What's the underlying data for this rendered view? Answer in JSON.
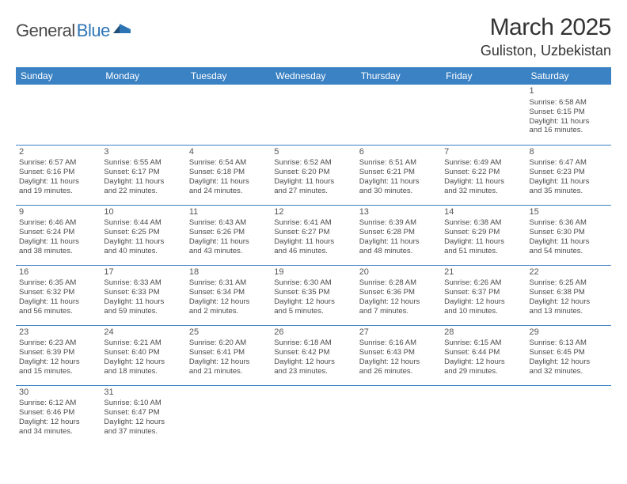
{
  "logo": {
    "text1": "General",
    "text2": "Blue"
  },
  "title": "March 2025",
  "location": "Guliston, Uzbekistan",
  "colors": {
    "header_bg": "#3b82c4",
    "header_text": "#ffffff",
    "border": "#3b82c4",
    "text": "#4a4a4a",
    "logo_grey": "#4a4a4a",
    "logo_blue": "#2e75b6"
  },
  "weekdays": [
    "Sunday",
    "Monday",
    "Tuesday",
    "Wednesday",
    "Thursday",
    "Friday",
    "Saturday"
  ],
  "weeks": [
    [
      null,
      null,
      null,
      null,
      null,
      null,
      {
        "n": "1",
        "sr": "Sunrise: 6:58 AM",
        "ss": "Sunset: 6:15 PM",
        "d1": "Daylight: 11 hours",
        "d2": "and 16 minutes."
      }
    ],
    [
      {
        "n": "2",
        "sr": "Sunrise: 6:57 AM",
        "ss": "Sunset: 6:16 PM",
        "d1": "Daylight: 11 hours",
        "d2": "and 19 minutes."
      },
      {
        "n": "3",
        "sr": "Sunrise: 6:55 AM",
        "ss": "Sunset: 6:17 PM",
        "d1": "Daylight: 11 hours",
        "d2": "and 22 minutes."
      },
      {
        "n": "4",
        "sr": "Sunrise: 6:54 AM",
        "ss": "Sunset: 6:18 PM",
        "d1": "Daylight: 11 hours",
        "d2": "and 24 minutes."
      },
      {
        "n": "5",
        "sr": "Sunrise: 6:52 AM",
        "ss": "Sunset: 6:20 PM",
        "d1": "Daylight: 11 hours",
        "d2": "and 27 minutes."
      },
      {
        "n": "6",
        "sr": "Sunrise: 6:51 AM",
        "ss": "Sunset: 6:21 PM",
        "d1": "Daylight: 11 hours",
        "d2": "and 30 minutes."
      },
      {
        "n": "7",
        "sr": "Sunrise: 6:49 AM",
        "ss": "Sunset: 6:22 PM",
        "d1": "Daylight: 11 hours",
        "d2": "and 32 minutes."
      },
      {
        "n": "8",
        "sr": "Sunrise: 6:47 AM",
        "ss": "Sunset: 6:23 PM",
        "d1": "Daylight: 11 hours",
        "d2": "and 35 minutes."
      }
    ],
    [
      {
        "n": "9",
        "sr": "Sunrise: 6:46 AM",
        "ss": "Sunset: 6:24 PM",
        "d1": "Daylight: 11 hours",
        "d2": "and 38 minutes."
      },
      {
        "n": "10",
        "sr": "Sunrise: 6:44 AM",
        "ss": "Sunset: 6:25 PM",
        "d1": "Daylight: 11 hours",
        "d2": "and 40 minutes."
      },
      {
        "n": "11",
        "sr": "Sunrise: 6:43 AM",
        "ss": "Sunset: 6:26 PM",
        "d1": "Daylight: 11 hours",
        "d2": "and 43 minutes."
      },
      {
        "n": "12",
        "sr": "Sunrise: 6:41 AM",
        "ss": "Sunset: 6:27 PM",
        "d1": "Daylight: 11 hours",
        "d2": "and 46 minutes."
      },
      {
        "n": "13",
        "sr": "Sunrise: 6:39 AM",
        "ss": "Sunset: 6:28 PM",
        "d1": "Daylight: 11 hours",
        "d2": "and 48 minutes."
      },
      {
        "n": "14",
        "sr": "Sunrise: 6:38 AM",
        "ss": "Sunset: 6:29 PM",
        "d1": "Daylight: 11 hours",
        "d2": "and 51 minutes."
      },
      {
        "n": "15",
        "sr": "Sunrise: 6:36 AM",
        "ss": "Sunset: 6:30 PM",
        "d1": "Daylight: 11 hours",
        "d2": "and 54 minutes."
      }
    ],
    [
      {
        "n": "16",
        "sr": "Sunrise: 6:35 AM",
        "ss": "Sunset: 6:32 PM",
        "d1": "Daylight: 11 hours",
        "d2": "and 56 minutes."
      },
      {
        "n": "17",
        "sr": "Sunrise: 6:33 AM",
        "ss": "Sunset: 6:33 PM",
        "d1": "Daylight: 11 hours",
        "d2": "and 59 minutes."
      },
      {
        "n": "18",
        "sr": "Sunrise: 6:31 AM",
        "ss": "Sunset: 6:34 PM",
        "d1": "Daylight: 12 hours",
        "d2": "and 2 minutes."
      },
      {
        "n": "19",
        "sr": "Sunrise: 6:30 AM",
        "ss": "Sunset: 6:35 PM",
        "d1": "Daylight: 12 hours",
        "d2": "and 5 minutes."
      },
      {
        "n": "20",
        "sr": "Sunrise: 6:28 AM",
        "ss": "Sunset: 6:36 PM",
        "d1": "Daylight: 12 hours",
        "d2": "and 7 minutes."
      },
      {
        "n": "21",
        "sr": "Sunrise: 6:26 AM",
        "ss": "Sunset: 6:37 PM",
        "d1": "Daylight: 12 hours",
        "d2": "and 10 minutes."
      },
      {
        "n": "22",
        "sr": "Sunrise: 6:25 AM",
        "ss": "Sunset: 6:38 PM",
        "d1": "Daylight: 12 hours",
        "d2": "and 13 minutes."
      }
    ],
    [
      {
        "n": "23",
        "sr": "Sunrise: 6:23 AM",
        "ss": "Sunset: 6:39 PM",
        "d1": "Daylight: 12 hours",
        "d2": "and 15 minutes."
      },
      {
        "n": "24",
        "sr": "Sunrise: 6:21 AM",
        "ss": "Sunset: 6:40 PM",
        "d1": "Daylight: 12 hours",
        "d2": "and 18 minutes."
      },
      {
        "n": "25",
        "sr": "Sunrise: 6:20 AM",
        "ss": "Sunset: 6:41 PM",
        "d1": "Daylight: 12 hours",
        "d2": "and 21 minutes."
      },
      {
        "n": "26",
        "sr": "Sunrise: 6:18 AM",
        "ss": "Sunset: 6:42 PM",
        "d1": "Daylight: 12 hours",
        "d2": "and 23 minutes."
      },
      {
        "n": "27",
        "sr": "Sunrise: 6:16 AM",
        "ss": "Sunset: 6:43 PM",
        "d1": "Daylight: 12 hours",
        "d2": "and 26 minutes."
      },
      {
        "n": "28",
        "sr": "Sunrise: 6:15 AM",
        "ss": "Sunset: 6:44 PM",
        "d1": "Daylight: 12 hours",
        "d2": "and 29 minutes."
      },
      {
        "n": "29",
        "sr": "Sunrise: 6:13 AM",
        "ss": "Sunset: 6:45 PM",
        "d1": "Daylight: 12 hours",
        "d2": "and 32 minutes."
      }
    ],
    [
      {
        "n": "30",
        "sr": "Sunrise: 6:12 AM",
        "ss": "Sunset: 6:46 PM",
        "d1": "Daylight: 12 hours",
        "d2": "and 34 minutes."
      },
      {
        "n": "31",
        "sr": "Sunrise: 6:10 AM",
        "ss": "Sunset: 6:47 PM",
        "d1": "Daylight: 12 hours",
        "d2": "and 37 minutes."
      },
      null,
      null,
      null,
      null,
      null
    ]
  ]
}
